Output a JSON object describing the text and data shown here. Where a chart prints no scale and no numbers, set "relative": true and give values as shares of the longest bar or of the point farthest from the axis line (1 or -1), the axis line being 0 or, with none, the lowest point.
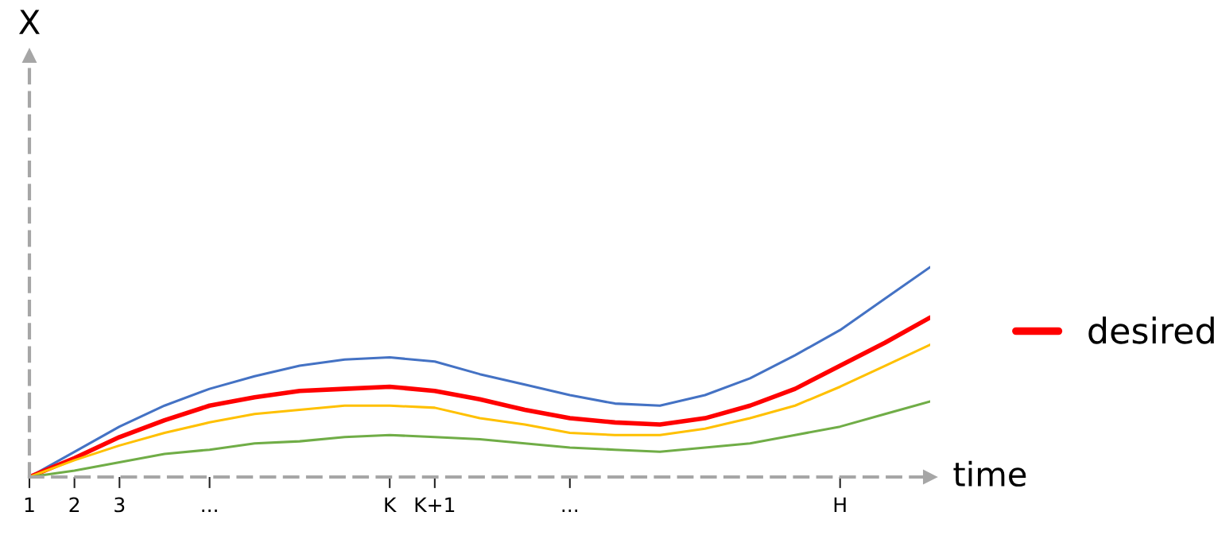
{
  "chart_data": {
    "type": "line",
    "relative": true,
    "xlabel": "time",
    "annotations": [
      "X"
    ],
    "categories": [
      "1",
      "2",
      "3",
      null,
      "...",
      null,
      null,
      null,
      "K",
      "K+1",
      null,
      null,
      "...",
      null,
      null,
      null,
      null,
      null,
      "H",
      null,
      null
    ],
    "series": [
      {
        "color": "#4472c4",
        "values": [
          0,
          0.12,
          0.24,
          0.34,
          0.42,
          0.48,
          0.53,
          0.56,
          0.57,
          0.55,
          0.49,
          0.44,
          0.39,
          0.35,
          0.34,
          0.39,
          0.47,
          0.58,
          0.7,
          0.85,
          1.0
        ]
      },
      {
        "name": "desired",
        "color": "#ff0000",
        "values": [
          0,
          0.09,
          0.19,
          0.27,
          0.34,
          0.38,
          0.41,
          0.42,
          0.43,
          0.41,
          0.37,
          0.32,
          0.28,
          0.26,
          0.25,
          0.28,
          0.34,
          0.42,
          0.53,
          0.64,
          0.76
        ]
      },
      {
        "color": "#ffc000",
        "values": [
          0,
          0.08,
          0.15,
          0.21,
          0.26,
          0.3,
          0.32,
          0.34,
          0.34,
          0.33,
          0.28,
          0.25,
          0.21,
          0.2,
          0.2,
          0.23,
          0.28,
          0.34,
          0.43,
          0.53,
          0.63
        ]
      },
      {
        "color": "#70ad47",
        "values": [
          0,
          0.03,
          0.07,
          0.11,
          0.13,
          0.16,
          0.17,
          0.19,
          0.2,
          0.19,
          0.18,
          0.16,
          0.14,
          0.13,
          0.12,
          0.14,
          0.16,
          0.2,
          0.24,
          0.3,
          0.36
        ]
      }
    ],
    "legend": "right",
    "grid": false,
    "marker": "none",
    "line_style": "solid"
  }
}
